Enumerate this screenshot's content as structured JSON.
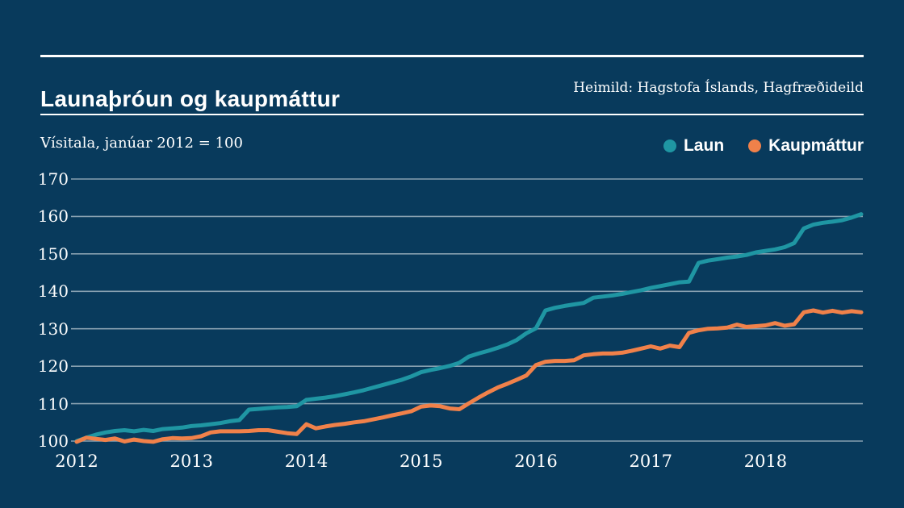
{
  "page": {
    "background": "#083a5c",
    "text_color": "#ffffff",
    "grid_color": "#a8bac6",
    "rule_color": "#ffffff"
  },
  "header": {
    "title": "Launaþróun og kaupmáttur",
    "source": "Heimild: Hagstofa Íslands, Hagfræðideild"
  },
  "chart_data": {
    "type": "line",
    "title": "Launaþróun og kaupmáttur",
    "subtitle": "Vísitala, janúar 2012 = 100",
    "x_start": "2012-01",
    "x_end": "2018-11",
    "x_tick_labels": [
      "2012",
      "2013",
      "2014",
      "2015",
      "2016",
      "2017",
      "2018"
    ],
    "y_ticks": [
      100,
      110,
      120,
      130,
      140,
      150,
      160,
      170
    ],
    "ylim": [
      100,
      170
    ],
    "grid": "horizontal",
    "legend_position": "top-right",
    "series": [
      {
        "name": "Laun",
        "color": "#1f96a3",
        "values": [
          100.0,
          100.9,
          101.7,
          102.3,
          102.7,
          102.9,
          102.6,
          103.0,
          102.7,
          103.2,
          103.4,
          103.6,
          104.0,
          104.2,
          104.5,
          104.8,
          105.3,
          105.6,
          108.4,
          108.6,
          108.8,
          109.0,
          109.1,
          109.3,
          111.0,
          111.3,
          111.6,
          112.0,
          112.5,
          113.0,
          113.6,
          114.3,
          115.0,
          115.7,
          116.4,
          117.3,
          118.4,
          119.0,
          119.5,
          120.1,
          120.9,
          122.6,
          123.4,
          124.1,
          124.9,
          125.8,
          127.0,
          128.8,
          130.1,
          134.9,
          135.6,
          136.1,
          136.5,
          136.9,
          138.3,
          138.6,
          138.9,
          139.3,
          139.8,
          140.3,
          140.9,
          141.4,
          141.9,
          142.4,
          142.6,
          147.6,
          148.2,
          148.6,
          149.0,
          149.3,
          149.7,
          150.4,
          150.8,
          151.2,
          151.8,
          152.9,
          156.8,
          157.8,
          158.3,
          158.6,
          159.0,
          159.7,
          160.6
        ]
      },
      {
        "name": "Kaupmáttur",
        "color": "#f0814a",
        "values": [
          99.8,
          100.9,
          100.6,
          100.3,
          100.7,
          99.9,
          100.4,
          100.0,
          99.8,
          100.5,
          100.8,
          100.7,
          100.8,
          101.3,
          102.3,
          102.6,
          102.6,
          102.6,
          102.7,
          102.9,
          102.9,
          102.5,
          102.1,
          101.9,
          104.5,
          103.4,
          103.9,
          104.3,
          104.6,
          105.0,
          105.3,
          105.8,
          106.3,
          106.9,
          107.4,
          108.0,
          109.2,
          109.5,
          109.3,
          108.7,
          108.5,
          110.1,
          111.6,
          113.0,
          114.3,
          115.3,
          116.4,
          117.5,
          120.3,
          121.2,
          121.4,
          121.4,
          121.6,
          122.9,
          123.2,
          123.4,
          123.4,
          123.6,
          124.1,
          124.7,
          125.3,
          124.7,
          125.5,
          125.1,
          128.9,
          129.6,
          130.0,
          130.1,
          130.3,
          131.1,
          130.5,
          130.7,
          130.9,
          131.5,
          130.8,
          131.2,
          134.4,
          134.9,
          134.3,
          134.8,
          134.3,
          134.7,
          134.4
        ]
      }
    ]
  }
}
